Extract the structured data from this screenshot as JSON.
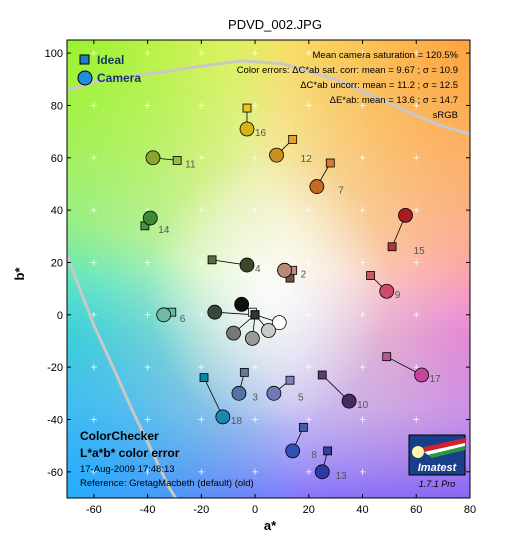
{
  "chart_data": {
    "type": "scatter",
    "title": "PDVD_002.JPG",
    "xlabel": "a*",
    "ylabel": "b*",
    "xlim": [
      -70,
      80
    ],
    "ylim": [
      -70,
      105
    ],
    "xticks": [
      -60,
      -40,
      -20,
      0,
      20,
      40,
      60,
      80
    ],
    "yticks": [
      -60,
      -40,
      -20,
      0,
      20,
      40,
      60,
      80,
      100
    ],
    "grid": "crosses",
    "background": "a*b* color-space gradient",
    "legend": {
      "placement": "top-left",
      "entries": [
        {
          "label": "Ideal",
          "marker": "square"
        },
        {
          "label": "Camera",
          "marker": "circle"
        }
      ]
    },
    "stats": {
      "line1": "Mean camera saturation = 120.5%",
      "line2": "Color errors:  ΔC*ab sat. corr:  mean = 9.67 ;  σ = 10.9",
      "line3": "ΔC*ab uncorr:  mean = 11.2 ;  σ = 12.5",
      "line4": "ΔE*ab:  mean = 13.6 ;  σ = 14.7",
      "line5": "sRGB"
    },
    "footer": {
      "title": "ColorChecker",
      "subtitle": "L*a*b* color error",
      "date": "17-Aug-2009 17:48:13",
      "reference": "Reference: GretagMacbeth (default) (old)"
    },
    "logo": {
      "text": "Imatest",
      "version": "1.7.1  Pro"
    },
    "gamut_boundary": [
      [
        [
          -72,
          85
        ],
        [
          -60,
          89
        ],
        [
          -40,
          92
        ],
        [
          -20,
          95
        ],
        [
          -5,
          97
        ],
        [
          10,
          96
        ],
        [
          30,
          90
        ],
        [
          45,
          83
        ],
        [
          60,
          76
        ],
        [
          70,
          72
        ],
        [
          80,
          69
        ]
      ],
      [
        [
          -72,
          28
        ],
        [
          -66,
          12
        ],
        [
          -60,
          -4
        ],
        [
          -52,
          -22
        ],
        [
          -45,
          -38
        ],
        [
          -38,
          -53
        ],
        [
          -32,
          -66
        ],
        [
          -29,
          -71
        ]
      ]
    ],
    "patches": [
      {
        "label": "",
        "ideal": [
          13,
          14
        ],
        "camera": [
          11,
          17
        ],
        "ideal_color": "#744e3e",
        "camera_color": "#8a6a5c"
      },
      {
        "label": "2",
        "ideal": [
          14,
          17
        ],
        "camera": [
          11,
          17
        ],
        "ideal_color": "#c28f7e",
        "camera_color": "#b9897a"
      },
      {
        "label": "3",
        "ideal": [
          -4,
          -22
        ],
        "camera": [
          -6,
          -30
        ],
        "ideal_color": "#5e7a9c",
        "camera_color": "#4f74a5"
      },
      {
        "label": "4",
        "ideal": [
          -16,
          21
        ],
        "camera": [
          -3,
          19
        ],
        "ideal_color": "#5a6a3b",
        "camera_color": "#3b4a26"
      },
      {
        "label": "5",
        "ideal": [
          13,
          -25
        ],
        "camera": [
          7,
          -30
        ],
        "ideal_color": "#8082b1",
        "camera_color": "#6f79b7"
      },
      {
        "label": "6",
        "ideal": [
          -31,
          1
        ],
        "camera": [
          -34,
          0
        ],
        "ideal_color": "#60bca6",
        "camera_color": "#6fb9a9"
      },
      {
        "label": "7",
        "ideal": [
          28,
          58
        ],
        "camera": [
          23,
          49
        ],
        "ideal_color": "#d67c30",
        "camera_color": "#c46a22"
      },
      {
        "label": "8",
        "ideal": [
          18,
          -43
        ],
        "camera": [
          14,
          -52
        ],
        "ideal_color": "#495ca8",
        "camera_color": "#3450b4"
      },
      {
        "label": "9",
        "ideal": [
          43,
          15
        ],
        "camera": [
          49,
          9
        ],
        "ideal_color": "#c35a62",
        "camera_color": "#d04a6a"
      },
      {
        "label": "10",
        "ideal": [
          25,
          -23
        ],
        "camera": [
          35,
          -33
        ],
        "ideal_color": "#5d3c6c",
        "camera_color": "#4a2a66"
      },
      {
        "label": "11",
        "ideal": [
          -29,
          59
        ],
        "camera": [
          -38,
          60
        ],
        "ideal_color": "#9dbb40",
        "camera_color": "#8aa52c"
      },
      {
        "label": "12",
        "ideal": [
          14,
          67
        ],
        "camera": [
          8,
          61
        ],
        "ideal_color": "#e3a42e",
        "camera_color": "#c98f20"
      },
      {
        "label": "13",
        "ideal": [
          27,
          -52
        ],
        "camera": [
          25,
          -60
        ],
        "ideal_color": "#383e96",
        "camera_color": "#2d3aa6"
      },
      {
        "label": "14",
        "ideal": [
          -41,
          34
        ],
        "camera": [
          -39,
          37
        ],
        "ideal_color": "#469447",
        "camera_color": "#3e8a34"
      },
      {
        "label": "15",
        "ideal": [
          51,
          26
        ],
        "camera": [
          56,
          38
        ],
        "ideal_color": "#af363c",
        "camera_color": "#a81c24"
      },
      {
        "label": "16",
        "ideal": [
          -3,
          79
        ],
        "camera": [
          -3,
          71
        ],
        "ideal_color": "#e7c71f",
        "camera_color": "#d8b314"
      },
      {
        "label": "17",
        "ideal": [
          49,
          -16
        ],
        "camera": [
          62,
          -23
        ],
        "ideal_color": "#bb5695",
        "camera_color": "#c8449c"
      },
      {
        "label": "18",
        "ideal": [
          -19,
          -24
        ],
        "camera": [
          -12,
          -39
        ],
        "ideal_color": "#0885a1",
        "camera_color": "#1e86b0"
      },
      {
        "label": "",
        "ideal": [
          -1,
          1
        ],
        "camera": [
          -5,
          4
        ],
        "ideal_color": "#f3f3f2",
        "camera_color": "#101010"
      },
      {
        "label": "",
        "ideal": [
          0,
          0
        ],
        "camera": [
          9,
          -3
        ],
        "ideal_color": "#c8c8c8",
        "camera_color": "#ffffff"
      },
      {
        "label": "",
        "ideal": [
          0,
          0
        ],
        "camera": [
          5,
          -6
        ],
        "ideal_color": "#a0a0a0",
        "camera_color": "#c9c9c9"
      },
      {
        "label": "",
        "ideal": [
          0,
          0
        ],
        "camera": [
          -8,
          -7
        ],
        "ideal_color": "#7a7a79",
        "camera_color": "#777777"
      },
      {
        "label": "",
        "ideal": [
          0,
          0
        ],
        "camera": [
          -1,
          -9
        ],
        "ideal_color": "#555555",
        "camera_color": "#9a9a9a"
      },
      {
        "label": "",
        "ideal": [
          0,
          0
        ],
        "camera": [
          -15,
          1
        ],
        "ideal_color": "#343434",
        "camera_color": "#384838"
      }
    ]
  }
}
